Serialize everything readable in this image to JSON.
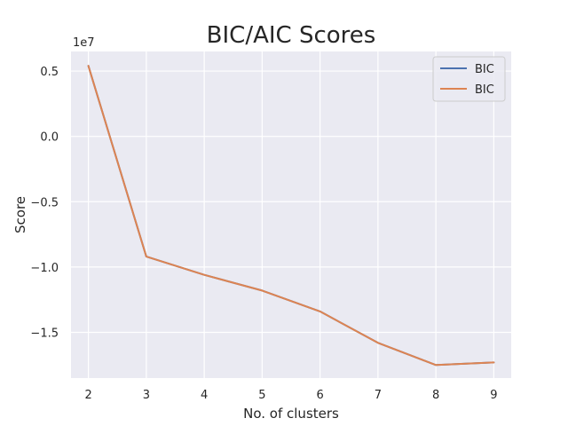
{
  "chart_data": {
    "type": "line",
    "title": "BIC/AIC Scores",
    "xlabel": "No. of clusters",
    "ylabel": "Score",
    "y_offset_label": "1e7",
    "x": [
      2,
      3,
      4,
      5,
      6,
      7,
      8,
      9
    ],
    "x_ticks": [
      2,
      3,
      4,
      5,
      6,
      7,
      8,
      9
    ],
    "y_ticks": [
      0.5,
      0.0,
      -0.5,
      -1.0,
      -1.5
    ],
    "y_tick_labels": [
      "0.5",
      "0.0",
      "−0.5",
      "−1.0",
      "−1.5"
    ],
    "xlim": [
      1.7,
      9.3
    ],
    "ylim": [
      -1.85,
      0.65
    ],
    "series": [
      {
        "name": "BIC",
        "color": "#4c72b0",
        "values": [
          0.54,
          -0.92,
          -1.06,
          -1.18,
          -1.34,
          -1.58,
          -1.75,
          -1.73
        ]
      },
      {
        "name": "BIC",
        "color": "#dd8452",
        "values": [
          0.54,
          -0.92,
          -1.06,
          -1.18,
          -1.34,
          -1.58,
          -1.75,
          -1.73
        ]
      }
    ],
    "grid": true,
    "legend_position": "top-right",
    "background": "#eaeaf2"
  }
}
